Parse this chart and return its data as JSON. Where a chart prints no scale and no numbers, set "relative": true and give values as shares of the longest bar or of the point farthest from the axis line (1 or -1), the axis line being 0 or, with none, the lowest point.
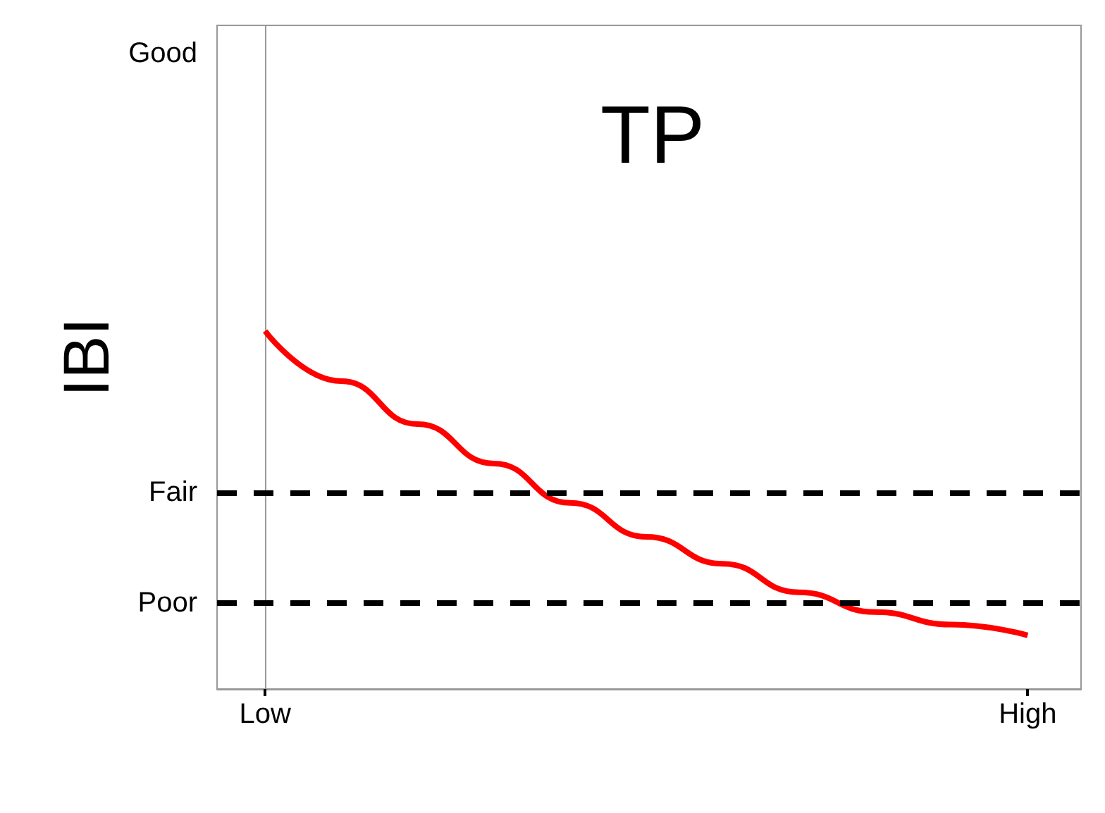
{
  "chart_data": {
    "type": "line",
    "title": "TP",
    "ylabel": "IBI",
    "relative": true,
    "categories": [
      "Low",
      null,
      null,
      null,
      null,
      null,
      null,
      null,
      null,
      null,
      "High"
    ],
    "series": [
      {
        "color": "#ff0000",
        "values": [
          1.0,
          0.86,
          0.74,
          0.63,
          0.52,
          0.425,
          0.35,
          0.27,
          0.215,
          0.18,
          0.15
        ]
      }
    ],
    "ref_lines": [
      {
        "axis": "y",
        "value": 0.551,
        "label": "Fair",
        "color": "#000000",
        "line_style": "dashed"
      },
      {
        "axis": "y",
        "value": 0.24,
        "label": "Poor",
        "color": "#000000",
        "line_style": "dashed"
      }
    ],
    "annotations": [
      "Good"
    ],
    "line_style": "solid"
  }
}
